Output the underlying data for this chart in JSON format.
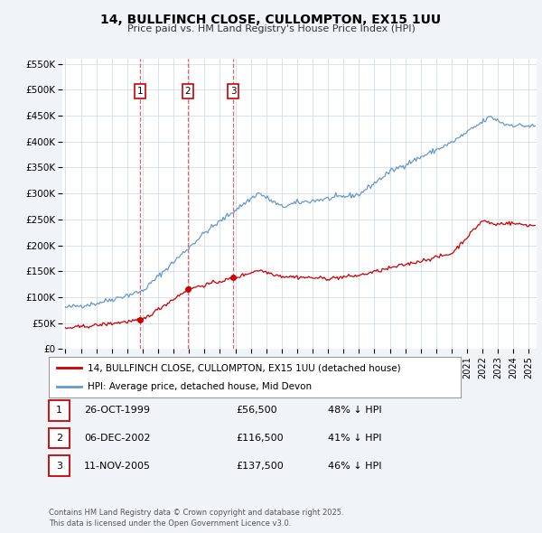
{
  "title": "14, BULLFINCH CLOSE, CULLOMPTON, EX15 1UU",
  "subtitle": "Price paid vs. HM Land Registry's House Price Index (HPI)",
  "legend_line1": "14, BULLFINCH CLOSE, CULLOMPTON, EX15 1UU (detached house)",
  "legend_line2": "HPI: Average price, detached house, Mid Devon",
  "transactions": [
    {
      "num": 1,
      "date": "26-OCT-1999",
      "price": "£56,500",
      "pct": "48% ↓ HPI",
      "year": 1999.82,
      "value": 56500
    },
    {
      "num": 2,
      "date": "06-DEC-2002",
      "price": "£116,500",
      "pct": "41% ↓ HPI",
      "year": 2002.93,
      "value": 116500
    },
    {
      "num": 3,
      "date": "11-NOV-2005",
      "price": "£137,500",
      "pct": "46% ↓ HPI",
      "year": 2005.86,
      "value": 137500
    }
  ],
  "footer": "Contains HM Land Registry data © Crown copyright and database right 2025.\nThis data is licensed under the Open Government Licence v3.0.",
  "price_color": "#cc0000",
  "hpi_color": "#6699cc",
  "background_color": "#f0f4f8",
  "plot_bg_color": "#ffffff",
  "grid_color": "#c8d8e8",
  "ylim": [
    0,
    560000
  ],
  "xlim_start": 1994.8,
  "xlim_end": 2025.5,
  "yticks": [
    0,
    50000,
    100000,
    150000,
    200000,
    250000,
    300000,
    350000,
    400000,
    450000,
    500000,
    550000
  ],
  "ytick_labels": [
    "£0",
    "£50K",
    "£100K",
    "£150K",
    "£200K",
    "£250K",
    "£300K",
    "£350K",
    "£400K",
    "£450K",
    "£500K",
    "£550K"
  ]
}
